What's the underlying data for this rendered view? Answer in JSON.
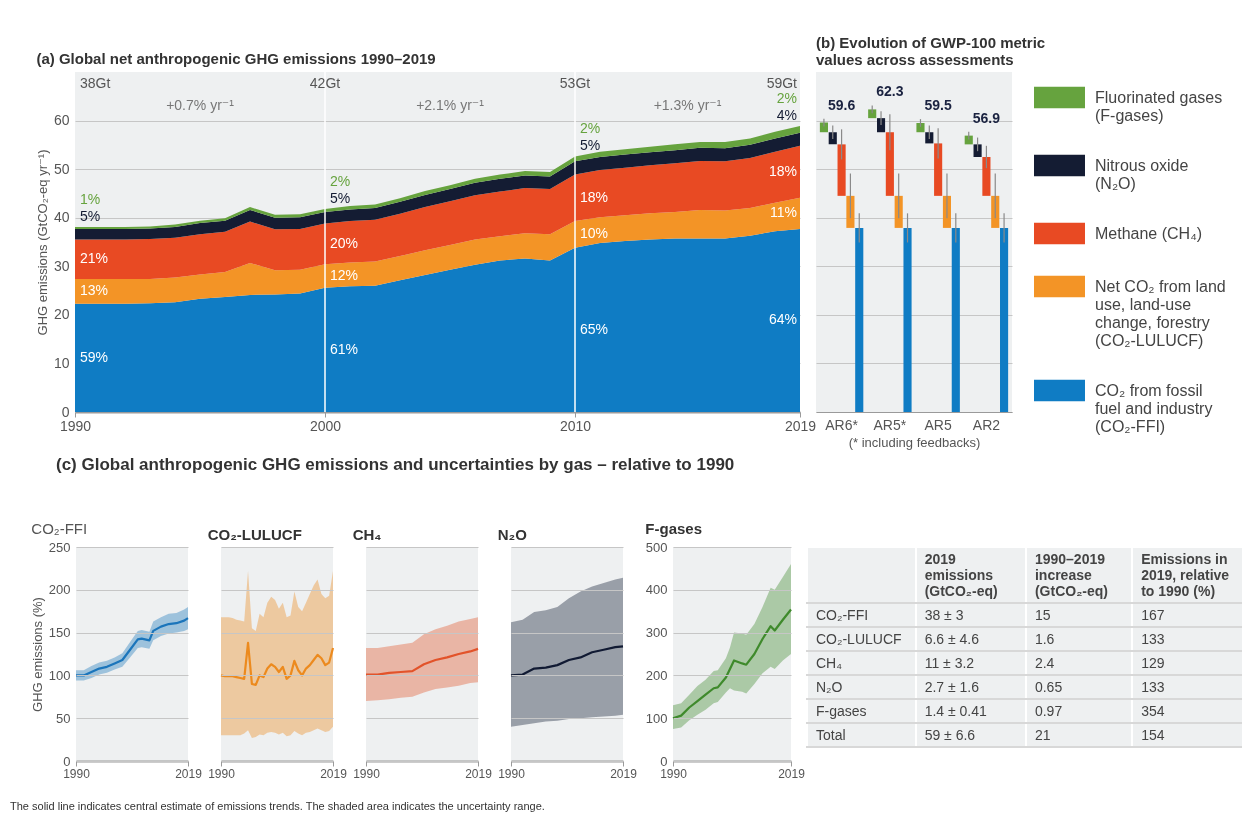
{
  "chart_data": [
    {
      "type": "area",
      "stacked": true,
      "title": "(a) Global net anthropogenic GHG emissions 1990–2019",
      "ylabel": "GHG emissions (GtCO₂-eq yr⁻¹)",
      "x": [
        1990,
        1991,
        1992,
        1993,
        1994,
        1995,
        1996,
        1997,
        1998,
        1999,
        2000,
        2001,
        2002,
        2003,
        2004,
        2005,
        2006,
        2007,
        2008,
        2009,
        2010,
        2011,
        2012,
        2013,
        2014,
        2015,
        2016,
        2017,
        2018,
        2019
      ],
      "xlim": [
        1990,
        2019
      ],
      "xticks": [
        1990,
        2000,
        2010,
        2019
      ],
      "ylim": [
        0,
        70
      ],
      "yticks": [
        0,
        10,
        20,
        30,
        40,
        50,
        60
      ],
      "grid": "y",
      "series": [
        {
          "color": "#0f7cc4",
          "values": [
            22.3,
            22.3,
            22.3,
            22.4,
            22.6,
            23.3,
            23.7,
            24.1,
            24.2,
            24.4,
            25.6,
            25.9,
            26.0,
            27.1,
            28.2,
            29.3,
            30.3,
            31.2,
            31.6,
            31.2,
            33.8,
            34.8,
            35.2,
            35.5,
            35.7,
            35.7,
            35.7,
            36.3,
            37.2,
            37.7
          ]
        },
        {
          "color": "#f39426",
          "values": [
            5.1,
            5.1,
            5.1,
            5.0,
            5.1,
            5.0,
            5.1,
            6.6,
            5.0,
            4.9,
            4.8,
            4.9,
            5.0,
            5.0,
            5.1,
            5.1,
            5.2,
            5.0,
            5.2,
            5.4,
            5.5,
            5.3,
            5.3,
            5.4,
            5.5,
            5.9,
            5.8,
            5.7,
            5.9,
            6.4
          ]
        },
        {
          "color": "#e84a23",
          "values": [
            8.1,
            8.1,
            8.1,
            8.2,
            8.2,
            8.3,
            8.3,
            8.5,
            8.4,
            8.4,
            8.4,
            8.5,
            8.6,
            8.7,
            8.9,
            9.0,
            9.1,
            9.2,
            9.3,
            9.3,
            9.6,
            9.7,
            9.8,
            9.9,
            10.0,
            10.1,
            10.1,
            10.3,
            10.5,
            10.7
          ]
        },
        {
          "color": "#141c33",
          "values": [
            2.2,
            2.2,
            2.2,
            2.2,
            2.2,
            2.3,
            2.3,
            2.4,
            2.4,
            2.4,
            2.4,
            2.4,
            2.4,
            2.5,
            2.5,
            2.5,
            2.6,
            2.6,
            2.6,
            2.6,
            2.7,
            2.7,
            2.7,
            2.7,
            2.7,
            2.7,
            2.7,
            2.7,
            2.7,
            2.7
          ]
        },
        {
          "color": "#66a33e",
          "values": [
            0.4,
            0.4,
            0.4,
            0.4,
            0.5,
            0.5,
            0.5,
            0.6,
            0.6,
            0.6,
            0.6,
            0.7,
            0.7,
            0.7,
            0.8,
            0.8,
            0.8,
            0.9,
            0.9,
            0.9,
            1.0,
            1.1,
            1.1,
            1.1,
            1.2,
            1.2,
            1.3,
            1.3,
            1.4,
            1.4
          ]
        }
      ],
      "ref_lines": [
        {
          "axis": "x",
          "value": 2000,
          "color": "#ffffff"
        },
        {
          "axis": "x",
          "value": 2010,
          "color": "#ffffff"
        }
      ],
      "annotations": [
        "38Gt",
        "42Gt",
        "53Gt",
        "59Gt",
        "+0.7% yr⁻¹",
        "+2.1% yr⁻¹",
        "+1.3% yr⁻¹",
        "1%",
        "5%",
        "21%",
        "13%",
        "59%",
        "2%",
        "5%",
        "20%",
        "12%",
        "61%",
        "2%",
        "5%",
        "18%",
        "10%",
        "65%",
        "2%",
        "4%",
        "18%",
        "11%",
        "64%"
      ]
    },
    {
      "type": "bar",
      "stacked": true,
      "title": "(b) Evolution of GWP-100 metric values across assessments",
      "xlabel": "(* including feedbacks)",
      "categories": [
        "AR6*",
        "AR5*",
        "AR5",
        "AR2"
      ],
      "ylim": [
        0,
        70
      ],
      "yticks": [
        0,
        10,
        20,
        30,
        40,
        50,
        60
      ],
      "grid": "y",
      "tick_labels": "x",
      "legend": "right",
      "series": [
        {
          "name": "CO₂ from fossil fuel and industry (CO₂-FFI)",
          "color": "#0f7cc4",
          "values": [
            37.9,
            37.9,
            37.9,
            37.9
          ],
          "errors": [
            3,
            3,
            3,
            3
          ]
        },
        {
          "name": "Net CO₂ from land use, land-use change, forestry (CO₂-LULUCF)",
          "color": "#f39426",
          "values": [
            6.6,
            6.6,
            6.6,
            6.6
          ],
          "errors": [
            4.6,
            4.6,
            4.6,
            4.6
          ]
        },
        {
          "name": "Methane (CH₄)",
          "color": "#e84a23",
          "values": [
            10.6,
            13.1,
            10.8,
            8.0
          ],
          "errors": [
            3.1,
            3.7,
            3.1,
            2.3
          ]
        },
        {
          "name": "Nitrous oxide (N₂O)",
          "color": "#141c33",
          "values": [
            2.5,
            2.9,
            2.3,
            2.6
          ],
          "errors": [
            1.4,
            1.4,
            1.4,
            1.4
          ]
        },
        {
          "name": "Fluorinated gases (F-gases)",
          "color": "#66a33e",
          "values": [
            2.0,
            1.8,
            1.9,
            1.8
          ],
          "errors": [
            0.8,
            0.8,
            0.8,
            0.8
          ]
        }
      ],
      "totals": [
        "59.6",
        "62.3",
        "59.5",
        "56.9"
      ]
    },
    {
      "type": "line",
      "title": "(c) Global anthropogenic GHG emissions and uncertainties by gas – relative to 1990",
      "subtitle": "CO₂-FFI",
      "ylabel": "GHG emissions (%)",
      "x": [
        1990,
        1992,
        1994,
        1996,
        1998,
        2000,
        2002,
        2004,
        2006,
        2007,
        2009,
        2010,
        2012,
        2014,
        2016,
        2018,
        2019
      ],
      "xlim": [
        1990,
        2019
      ],
      "xticks": [
        1990,
        2019
      ],
      "ylim": [
        0,
        250
      ],
      "yticks": [
        0,
        50,
        100,
        150,
        200,
        250
      ],
      "grid": "y",
      "series": [
        {
          "color": "#1b75bb",
          "values": [
            100,
            100,
            104,
            108,
            110,
            114,
            118,
            130,
            142,
            143,
            141,
            152,
            157,
            160,
            161,
            164,
            167
          ],
          "lower": [
            94,
            94,
            97,
            101,
            103,
            107,
            110,
            121,
            132,
            133,
            131,
            141,
            146,
            149,
            150,
            152,
            154
          ],
          "upper": [
            106,
            106,
            111,
            115,
            117,
            121,
            126,
            139,
            152,
            153,
            151,
            163,
            168,
            172,
            173,
            177,
            180
          ]
        }
      ],
      "annotations": [
        "The solid line indicates central estimate of emissions trends. The shaded area indicates the uncertainty range."
      ]
    },
    {
      "type": "line",
      "title": "CO₂-LULUCF",
      "x": [
        1990,
        1991,
        1992,
        1993,
        1994,
        1995,
        1996,
        1997,
        1998,
        1999,
        2000,
        2001,
        2002,
        2003,
        2004,
        2005,
        2006,
        2007,
        2008,
        2009,
        2010,
        2011,
        2012,
        2013,
        2014,
        2015,
        2016,
        2017,
        2018,
        2019
      ],
      "xlim": [
        1990,
        2019
      ],
      "xticks": [
        1990,
        2019
      ],
      "ylim": [
        0,
        250
      ],
      "yticks": [
        0,
        50,
        100,
        150,
        200,
        250
      ],
      "grid": "y",
      "tick_labels": "x",
      "series": [
        {
          "color": "#ec8a1e",
          "values": [
            100,
            99,
            99,
            99,
            98,
            97,
            96,
            138,
            90,
            89,
            100,
            98,
            108,
            113,
            110,
            104,
            110,
            96,
            100,
            117,
            106,
            100,
            108,
            112,
            118,
            124,
            120,
            112,
            115,
            132
          ],
          "lower": [
            30,
            30,
            30,
            30,
            30,
            30,
            32,
            36,
            27,
            28,
            31,
            30,
            33,
            34,
            33,
            31,
            33,
            29,
            30,
            35,
            32,
            30,
            33,
            34,
            36,
            38,
            36,
            34,
            35,
            40
          ],
          "upper": [
            168,
            168,
            168,
            167,
            165,
            164,
            163,
            222,
            155,
            152,
            172,
            168,
            185,
            192,
            188,
            178,
            185,
            168,
            170,
            198,
            180,
            175,
            185,
            195,
            205,
            212,
            195,
            190,
            193,
            222
          ]
        }
      ]
    },
    {
      "type": "line",
      "title": "CH₄",
      "x": [
        1990,
        1993,
        1996,
        1999,
        2002,
        2005,
        2008,
        2011,
        2014,
        2017,
        2019
      ],
      "xlim": [
        1990,
        2019
      ],
      "xticks": [
        1990,
        2019
      ],
      "ylim": [
        0,
        250
      ],
      "yticks": [
        0,
        50,
        100,
        150,
        200,
        250
      ],
      "grid": "y",
      "tick_labels": "x",
      "series": [
        {
          "color": "#e2532a",
          "values": [
            101,
            101,
            103,
            104,
            105,
            113,
            118,
            121,
            125,
            128,
            131
          ],
          "lower": [
            70,
            71,
            72,
            74,
            75,
            80,
            84,
            86,
            88,
            91,
            92
          ],
          "upper": [
            132,
            132,
            134,
            136,
            138,
            148,
            154,
            158,
            163,
            166,
            168
          ]
        }
      ]
    },
    {
      "type": "line",
      "title": "N₂O",
      "x": [
        1990,
        1993,
        1996,
        1999,
        2002,
        2005,
        2008,
        2011,
        2014,
        2017,
        2019
      ],
      "xlim": [
        1990,
        2019
      ],
      "xticks": [
        1990,
        2019
      ],
      "ylim": [
        0,
        250
      ],
      "yticks": [
        0,
        50,
        100,
        150,
        200,
        250
      ],
      "grid": "y",
      "tick_labels": "x",
      "series": [
        {
          "color": "#111a33",
          "values": [
            100,
            101,
            108,
            109,
            112,
            118,
            121,
            127,
            130,
            133,
            134
          ],
          "lower": [
            40,
            42,
            44,
            46,
            47,
            49,
            50,
            51,
            52,
            53,
            54
          ],
          "upper": [
            162,
            165,
            174,
            176,
            180,
            190,
            198,
            204,
            208,
            212,
            214
          ]
        }
      ]
    },
    {
      "type": "line",
      "title": "F-gases",
      "x": [
        1990,
        1992,
        1994,
        1996,
        1998,
        2000,
        2001,
        2003,
        2004,
        2005,
        2007,
        2008,
        2010,
        2012,
        2014,
        2015,
        2017,
        2019
      ],
      "xlim": [
        1990,
        2019
      ],
      "xticks": [
        1990,
        2019
      ],
      "ylim": [
        0,
        500
      ],
      "yticks": [
        0,
        100,
        200,
        300,
        400,
        500
      ],
      "grid": "y",
      "series": [
        {
          "color": "#3f8a2c",
          "values": [
            100,
            106,
            125,
            140,
            155,
            170,
            172,
            195,
            215,
            235,
            228,
            225,
            250,
            285,
            315,
            305,
            330,
            354
          ],
          "lower": [
            75,
            78,
            95,
            108,
            120,
            135,
            138,
            160,
            170,
            165,
            162,
            158,
            180,
            205,
            220,
            215,
            235,
            250
          ],
          "upper": [
            130,
            135,
            155,
            175,
            190,
            210,
            212,
            240,
            265,
            300,
            298,
            295,
            320,
            360,
            405,
            400,
            430,
            460
          ]
        }
      ]
    },
    {
      "type": "other",
      "annotations": [
        "2019 emissions (GtCO₂-eq)",
        "1990–2019 increase (GtCO₂-eq)",
        "Emissions in 2019, relative to 1990 (%)",
        "CO₂-FFI",
        "38 ± 3",
        "15",
        "167",
        "CO₂-LULUCF",
        "6.6 ± 4.6",
        "1.6",
        "133",
        "CH₄",
        "11 ± 3.2",
        "2.4",
        "129",
        "N₂O",
        "2.7 ± 1.6",
        "0.65",
        "133",
        "F-gases",
        "1.4 ± 0.41",
        "0.97",
        "354",
        "Total",
        "59 ± 6.6",
        "21",
        "154"
      ]
    }
  ]
}
